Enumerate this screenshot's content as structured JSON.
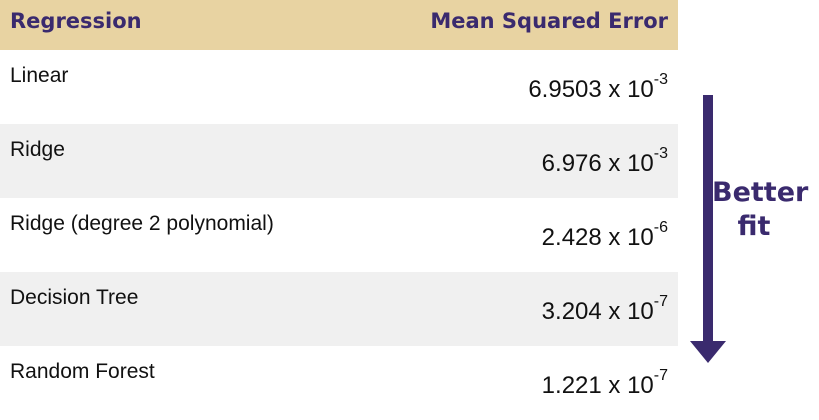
{
  "header": {
    "col1": "Regression",
    "col2": "Mean Squared Error"
  },
  "rows": [
    {
      "name": "Linear",
      "mantissa": "6.9503 x 10",
      "exponent": "-3"
    },
    {
      "name": "Ridge",
      "mantissa": "6.976 x 10",
      "exponent": "-3"
    },
    {
      "name": "Ridge (degree 2 polynomial)",
      "mantissa": "2.428 x 10",
      "exponent": "-6"
    },
    {
      "name": "Decision Tree",
      "mantissa": "3.204 x 10",
      "exponent": "-7"
    },
    {
      "name": "Random Forest",
      "mantissa": "1.221 x 10",
      "exponent": "-7"
    }
  ],
  "annotation": {
    "line1": "Better",
    "line2": "fit"
  },
  "colors": {
    "header_bg": "#e8d3a2",
    "accent": "#3a2a6e",
    "row_shade": "#f0f0f0"
  }
}
